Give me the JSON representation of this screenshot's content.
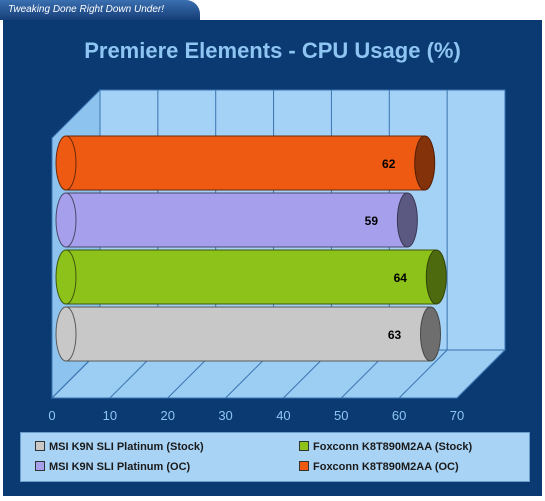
{
  "banner": {
    "text": "Tweaking Done Right Down Under!"
  },
  "chart_data": {
    "type": "bar",
    "orientation": "horizontal",
    "style": "3d-cylinder",
    "title": "Premiere Elements  - CPU Usage (%)",
    "xlim": [
      0,
      70
    ],
    "x_ticks": [
      "0",
      "10",
      "20",
      "30",
      "40",
      "50",
      "60",
      "70"
    ],
    "grid": true,
    "legend_position": "bottom",
    "series": [
      {
        "name": "MSI K9N SLI Platinum (Stock)",
        "value": 63,
        "label": "63",
        "color": "#c8c8c8"
      },
      {
        "name": "Foxconn K8T890M2AA (Stock)",
        "value": 64,
        "label": "64",
        "color": "#8cc21a"
      },
      {
        "name": "MSI K9N SLI Platinum (OC)",
        "value": 59,
        "label": "59",
        "color": "#a6a0ec"
      },
      {
        "name": "Foxconn K8T890M2AA (OC)",
        "value": 62,
        "label": "62",
        "color": "#ee5a12"
      }
    ],
    "legend": [
      {
        "name": "MSI K9N SLI Platinum (Stock)",
        "color": "#c8c8c8"
      },
      {
        "name": "Foxconn K8T890M2AA (Stock)",
        "color": "#8cc21a"
      },
      {
        "name": "MSI K9N SLI Platinum (OC)",
        "color": "#a6a0ec"
      },
      {
        "name": "Foxconn K8T890M2AA (OC)",
        "color": "#ee5a12"
      }
    ]
  }
}
